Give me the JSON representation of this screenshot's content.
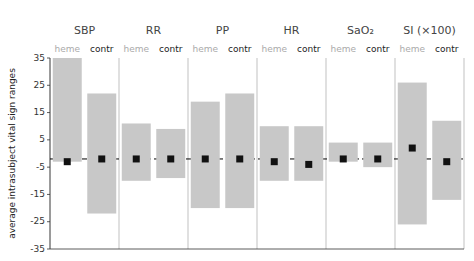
{
  "chart_data": {
    "type": "floating_bar",
    "ylabel": "average intrasubject vital sign ranges",
    "categories": [
      "SBP",
      "RR",
      "PP",
      "HR",
      "SaO₂",
      "SI (×100)"
    ],
    "color": "#c8c8c8",
    "reference_line": -2,
    "series": [
      {
        "name": "heme",
        "color": "#aaaaaa",
        "low": [
          -3,
          -10,
          -20,
          -10,
          -3,
          -26
        ],
        "high": [
          35,
          11,
          19,
          10,
          4,
          26
        ],
        "values": [
          -3,
          -2,
          -2,
          -3,
          -2,
          2
        ]
      },
      {
        "name": "contr",
        "color": "#222222",
        "low": [
          -22,
          -9,
          -20,
          -10,
          -5,
          -17
        ],
        "high": [
          22,
          9,
          22,
          10,
          4,
          12
        ],
        "values": [
          -2,
          -2,
          -2,
          -4,
          -2,
          -3
        ]
      }
    ],
    "ylim": [
      -35,
      35
    ],
    "yticks": [
      -35,
      -25,
      -15,
      -5,
      5,
      15,
      25,
      35
    ]
  }
}
